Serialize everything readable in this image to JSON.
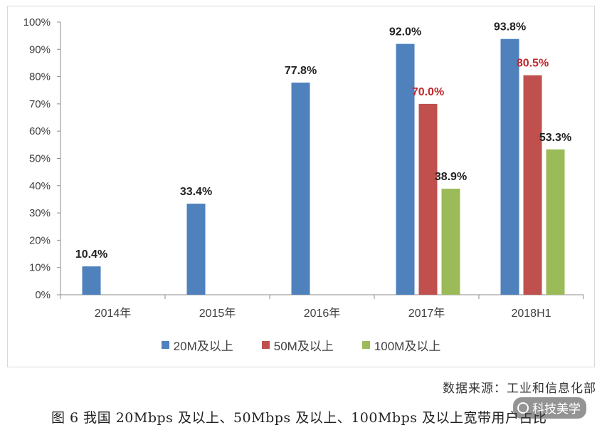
{
  "chart_data": {
    "type": "bar",
    "categories": [
      "2014年",
      "2015年",
      "2016年",
      "2017年",
      "2018H1"
    ],
    "series": [
      {
        "name": "20M及以上",
        "color": "#4f81bd",
        "values": [
          10.4,
          33.4,
          77.8,
          92.0,
          93.8
        ],
        "labels": [
          "10.4%",
          "33.4%",
          "77.8%",
          "92.0%",
          "93.8%"
        ],
        "label_color": "#222222"
      },
      {
        "name": "50M及以上",
        "color": "#c0504d",
        "values": [
          null,
          null,
          null,
          70.0,
          80.5
        ],
        "labels": [
          "",
          "",
          "",
          "70.0%",
          "80.5%"
        ],
        "label_color": "#c0282d"
      },
      {
        "name": "100M及以上",
        "color": "#9bbb59",
        "values": [
          null,
          null,
          null,
          38.9,
          53.3
        ],
        "labels": [
          "",
          "",
          "",
          "38.9%",
          "53.3%"
        ],
        "label_color": "#222222"
      }
    ],
    "yticks": [
      "0%",
      "10%",
      "20%",
      "30%",
      "40%",
      "50%",
      "60%",
      "70%",
      "80%",
      "90%",
      "100%"
    ],
    "ylim": [
      0,
      100
    ],
    "grid": false,
    "legend_position": "bottom"
  },
  "source": "数据来源：工业和信息化部",
  "caption": "图 6 我国 20Mbps 及以上、50Mbps 及以上、100Mbps 及以上宽带用户占比",
  "watermark": "科技美学"
}
